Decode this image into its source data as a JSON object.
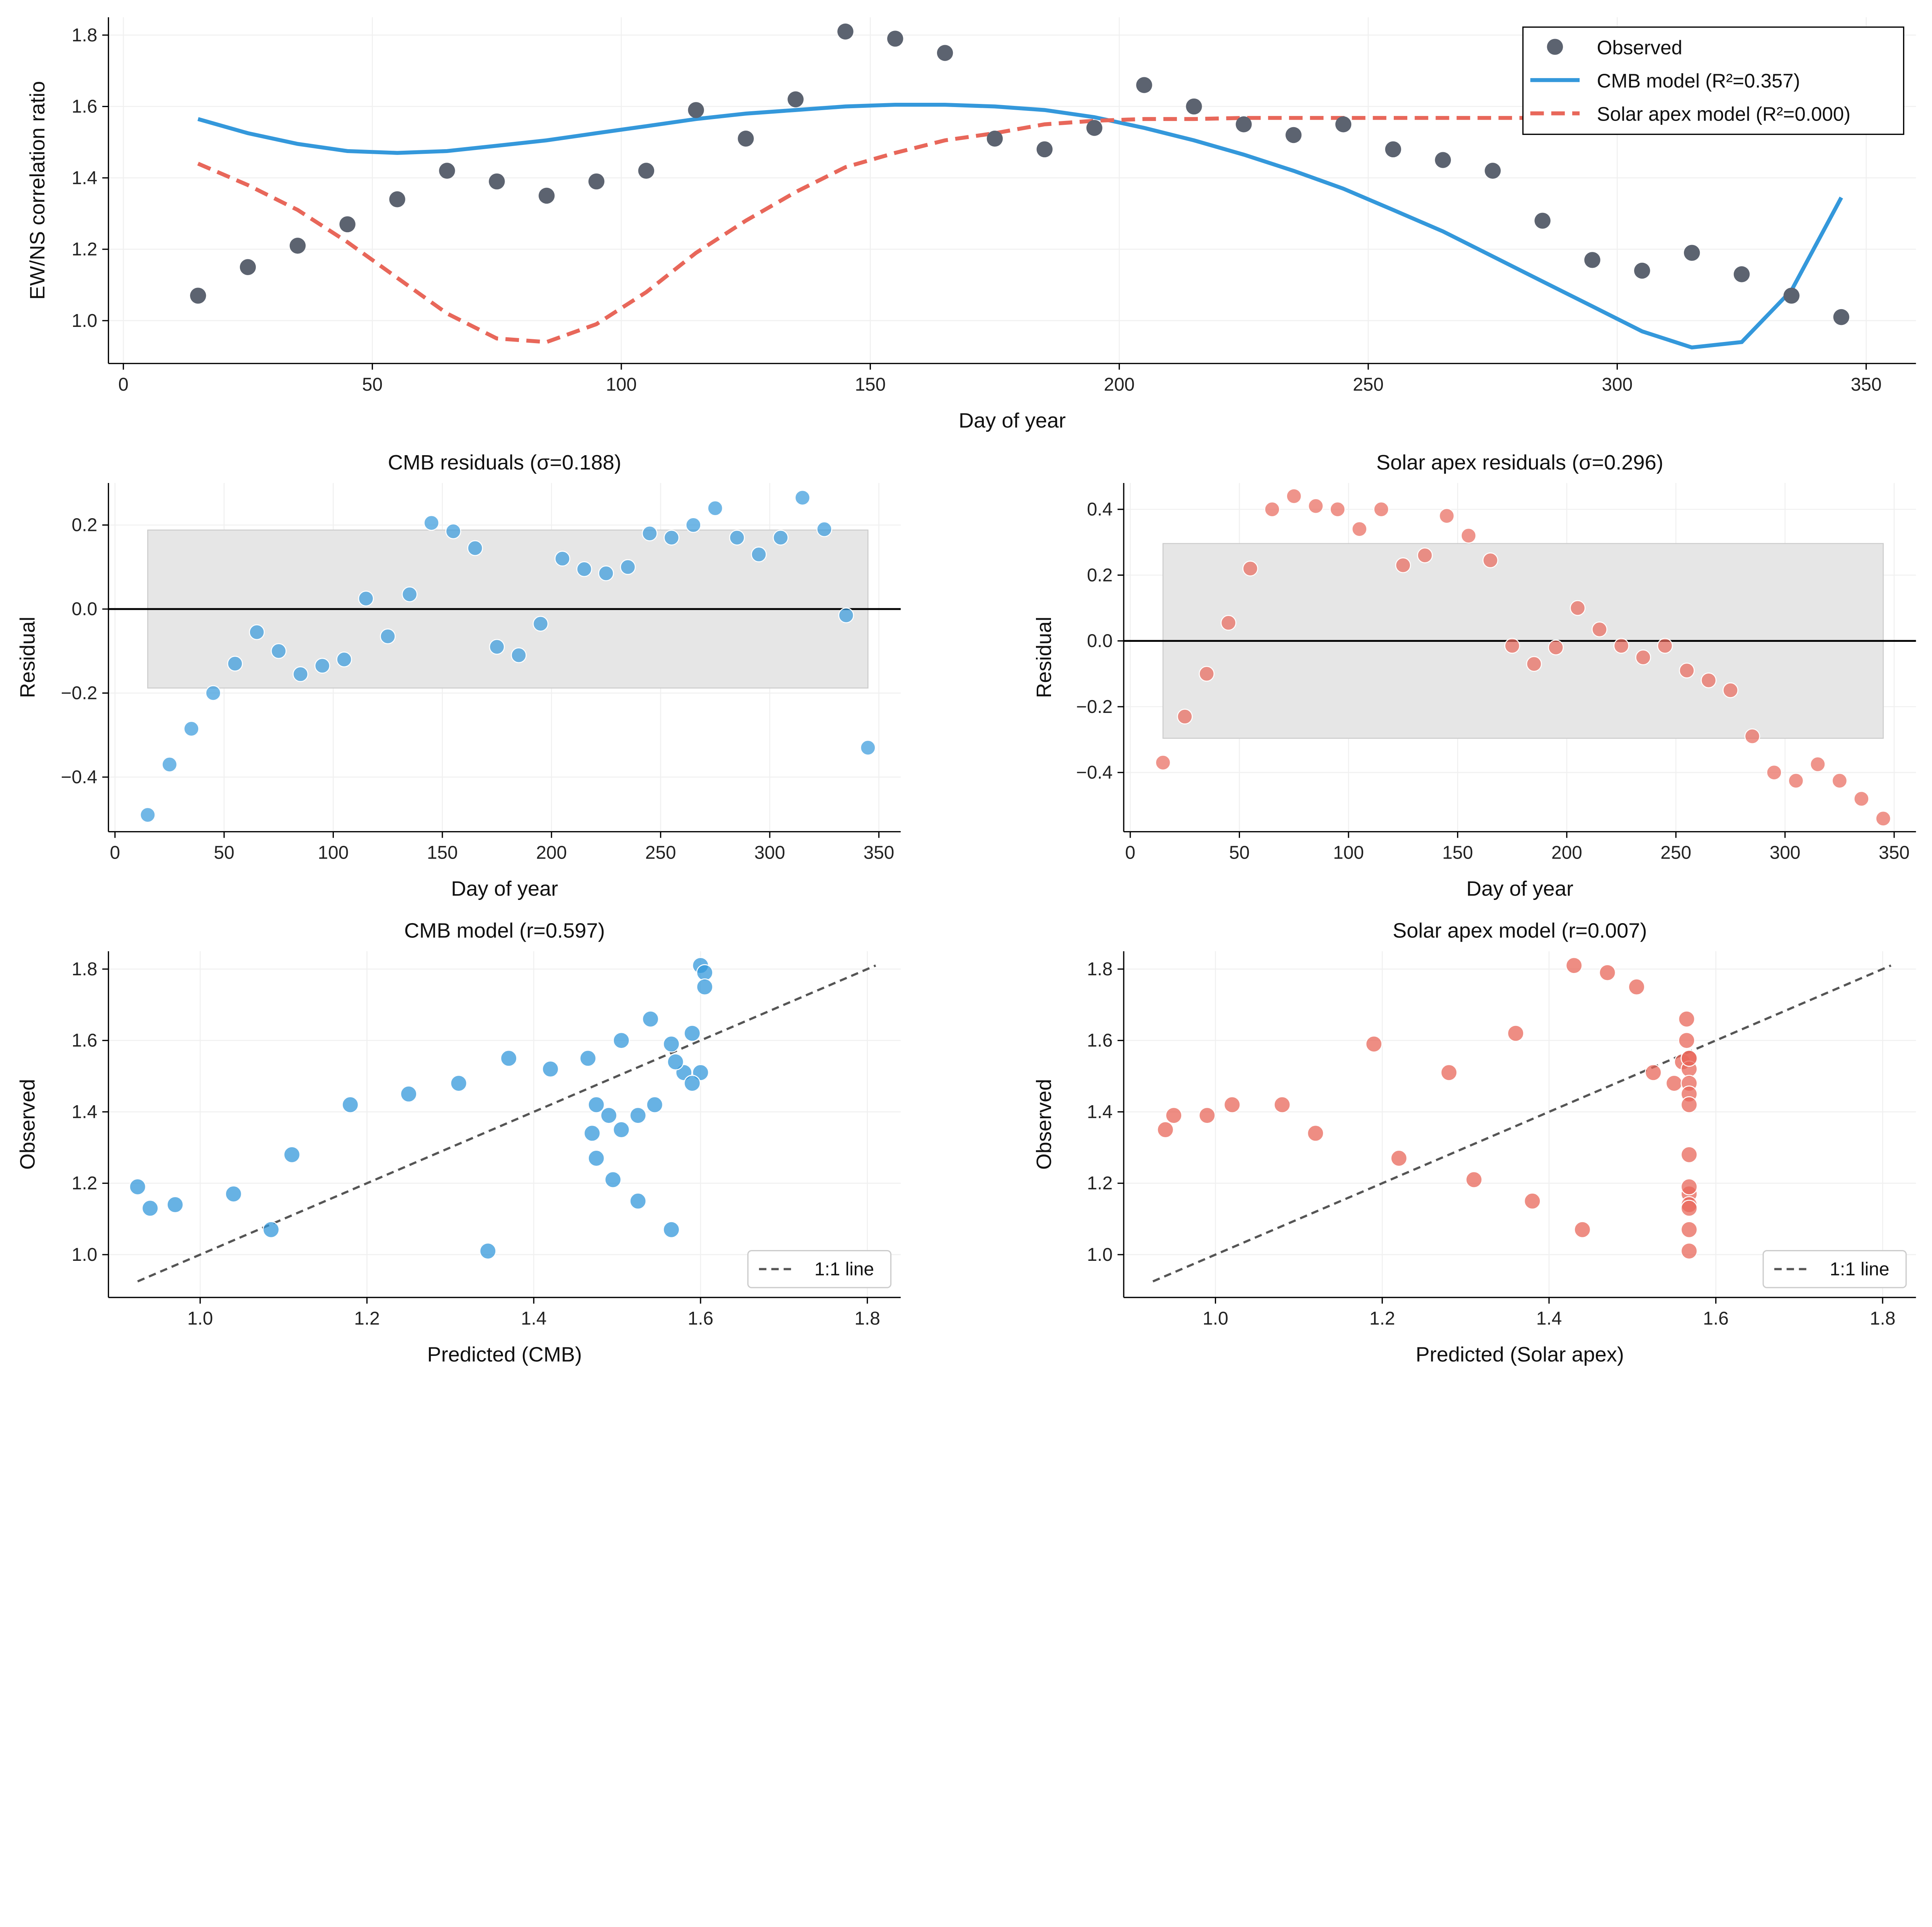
{
  "colors": {
    "observed": "#5c6370",
    "cmb": "#3498db",
    "solar": "#e8675a",
    "band": "#e6e6e6",
    "identity": "#555555"
  },
  "chart_data": [
    {
      "type": "line",
      "title": "",
      "xlabel": "Day of year",
      "ylabel": "EW/NS correlation ratio",
      "xlim": [
        -3,
        360
      ],
      "ylim": [
        0.88,
        1.85
      ],
      "xticks": [
        0,
        50,
        100,
        150,
        200,
        250,
        300,
        350
      ],
      "xtick_labels": [
        "0",
        "50",
        "100",
        "150",
        "200",
        "250",
        "300",
        "350"
      ],
      "yticks": [
        1.0,
        1.2,
        1.4,
        1.6,
        1.8
      ],
      "ytick_labels": [
        "1.0",
        "1.2",
        "1.4",
        "1.6",
        "1.8"
      ],
      "grid": true,
      "legend": "top-right",
      "x": [
        15,
        25,
        35,
        45,
        55,
        65,
        75,
        85,
        95,
        105,
        115,
        125,
        135,
        145,
        155,
        165,
        175,
        185,
        195,
        205,
        215,
        225,
        235,
        245,
        255,
        265,
        275,
        285,
        295,
        305,
        315,
        325,
        335,
        345
      ],
      "series": [
        {
          "name": "Observed",
          "kind": "scatter",
          "values": [
            1.07,
            1.15,
            1.21,
            1.27,
            1.34,
            1.42,
            1.39,
            1.35,
            1.39,
            1.42,
            1.59,
            1.51,
            1.62,
            1.81,
            1.79,
            1.75,
            1.51,
            1.48,
            1.54,
            1.66,
            1.6,
            1.55,
            1.52,
            1.55,
            1.48,
            1.45,
            1.42,
            1.28,
            1.17,
            1.14,
            1.19,
            1.13,
            1.07,
            1.01
          ]
        },
        {
          "name": "CMB model (R²=0.357)",
          "kind": "line",
          "values": [
            1.565,
            1.525,
            1.495,
            1.475,
            1.47,
            1.475,
            1.49,
            1.505,
            1.525,
            1.545,
            1.565,
            1.58,
            1.59,
            1.6,
            1.605,
            1.605,
            1.6,
            1.59,
            1.57,
            1.54,
            1.505,
            1.465,
            1.42,
            1.37,
            1.31,
            1.25,
            1.18,
            1.11,
            1.04,
            0.97,
            0.925,
            0.94,
            1.085,
            1.345
          ]
        },
        {
          "name": "Solar apex model (R²=0.000)",
          "kind": "dashed",
          "values": [
            1.44,
            1.38,
            1.31,
            1.22,
            1.12,
            1.02,
            0.95,
            0.94,
            0.99,
            1.08,
            1.19,
            1.28,
            1.36,
            1.43,
            1.47,
            1.505,
            1.525,
            1.55,
            1.56,
            1.565,
            1.565,
            1.568,
            1.568,
            1.568,
            1.568,
            1.568,
            1.568,
            1.568,
            1.568,
            1.568,
            1.568,
            1.568,
            1.568,
            1.568
          ]
        }
      ]
    },
    {
      "type": "scatter",
      "title": "CMB residuals (σ=0.188)",
      "xlabel": "Day of year",
      "ylabel": "Residual",
      "xlim": [
        -3,
        360
      ],
      "ylim": [
        -0.53,
        0.3
      ],
      "xticks": [
        0,
        50,
        100,
        150,
        200,
        250,
        300,
        350
      ],
      "xtick_labels": [
        "0",
        "50",
        "100",
        "150",
        "200",
        "250",
        "300",
        "350"
      ],
      "yticks": [
        -0.4,
        -0.2,
        0.0,
        0.2
      ],
      "ytick_labels": [
        "−0.4",
        "−0.2",
        "0.0",
        "0.2"
      ],
      "grid": true,
      "band": {
        "sigma": 0.188,
        "from": 15,
        "to": 345
      },
      "x": [
        15,
        25,
        35,
        45,
        55,
        65,
        75,
        85,
        95,
        105,
        115,
        125,
        135,
        145,
        155,
        165,
        175,
        185,
        195,
        205,
        215,
        225,
        235,
        245,
        255,
        265,
        275,
        285,
        295,
        305,
        315,
        325,
        335,
        345
      ],
      "y": [
        -0.49,
        -0.37,
        -0.285,
        -0.2,
        -0.13,
        -0.055,
        -0.1,
        -0.155,
        -0.135,
        -0.12,
        0.025,
        -0.065,
        0.035,
        0.205,
        0.185,
        0.145,
        -0.09,
        -0.11,
        -0.035,
        0.12,
        0.095,
        0.085,
        0.1,
        0.18,
        0.17,
        0.2,
        0.24,
        0.17,
        0.13,
        0.17,
        0.265,
        0.19,
        -0.015,
        -0.33
      ]
    },
    {
      "type": "scatter",
      "title": "Solar apex residuals (σ=0.296)",
      "xlabel": "Day of year",
      "ylabel": "Residual",
      "xlim": [
        -3,
        360
      ],
      "ylim": [
        -0.58,
        0.48
      ],
      "xticks": [
        0,
        50,
        100,
        150,
        200,
        250,
        300,
        350
      ],
      "xtick_labels": [
        "0",
        "50",
        "100",
        "150",
        "200",
        "250",
        "300",
        "350"
      ],
      "yticks": [
        -0.4,
        -0.2,
        0.0,
        0.2,
        0.4
      ],
      "ytick_labels": [
        "−0.4",
        "−0.2",
        "0.0",
        "0.2",
        "0.4"
      ],
      "grid": true,
      "band": {
        "sigma": 0.296,
        "from": 15,
        "to": 345
      },
      "x": [
        15,
        25,
        35,
        45,
        55,
        65,
        75,
        85,
        95,
        105,
        115,
        125,
        135,
        145,
        155,
        165,
        175,
        185,
        195,
        205,
        215,
        225,
        235,
        245,
        255,
        265,
        275,
        285,
        295,
        305,
        315,
        325,
        335,
        345
      ],
      "y": [
        -0.37,
        -0.23,
        -0.1,
        0.055,
        0.22,
        0.4,
        0.44,
        0.41,
        0.4,
        0.34,
        0.4,
        0.23,
        0.26,
        0.38,
        0.32,
        0.245,
        -0.015,
        -0.07,
        -0.02,
        0.1,
        0.035,
        -0.015,
        -0.05,
        -0.015,
        -0.09,
        -0.12,
        -0.15,
        -0.29,
        -0.4,
        -0.425,
        -0.375,
        -0.425,
        -0.48,
        -0.54
      ]
    },
    {
      "type": "scatter",
      "title": "CMB model (r=0.597)",
      "xlabel": "Predicted (CMB)",
      "ylabel": "Observed",
      "xlim": [
        0.89,
        1.84
      ],
      "ylim": [
        0.88,
        1.85
      ],
      "xticks": [
        1.0,
        1.2,
        1.4,
        1.6,
        1.8
      ],
      "xtick_labels": [
        "1.0",
        "1.2",
        "1.4",
        "1.6",
        "1.8"
      ],
      "yticks": [
        1.0,
        1.2,
        1.4,
        1.6,
        1.8
      ],
      "ytick_labels": [
        "1.0",
        "1.2",
        "1.4",
        "1.6",
        "1.8"
      ],
      "grid": true,
      "legend": "bottom-right",
      "identity_label": "1:1 line",
      "x": [
        1.565,
        1.525,
        1.495,
        1.475,
        1.47,
        1.475,
        1.49,
        1.505,
        1.525,
        1.545,
        1.565,
        1.58,
        1.59,
        1.6,
        1.605,
        1.605,
        1.6,
        1.59,
        1.57,
        1.54,
        1.505,
        1.465,
        1.42,
        1.37,
        1.31,
        1.25,
        1.18,
        1.11,
        1.04,
        0.97,
        0.925,
        0.94,
        1.085,
        1.345
      ],
      "y": [
        1.07,
        1.15,
        1.21,
        1.27,
        1.34,
        1.42,
        1.39,
        1.35,
        1.39,
        1.42,
        1.59,
        1.51,
        1.62,
        1.81,
        1.79,
        1.75,
        1.51,
        1.48,
        1.54,
        1.66,
        1.6,
        1.55,
        1.52,
        1.55,
        1.48,
        1.45,
        1.42,
        1.28,
        1.17,
        1.14,
        1.19,
        1.13,
        1.07,
        1.01
      ]
    },
    {
      "type": "scatter",
      "title": "Solar apex model (r=0.007)",
      "xlabel": "Predicted (Solar apex)",
      "ylabel": "Observed",
      "xlim": [
        0.89,
        1.84
      ],
      "ylim": [
        0.88,
        1.85
      ],
      "xticks": [
        1.0,
        1.2,
        1.4,
        1.6,
        1.8
      ],
      "xtick_labels": [
        "1.0",
        "1.2",
        "1.4",
        "1.6",
        "1.8"
      ],
      "yticks": [
        1.0,
        1.2,
        1.4,
        1.6,
        1.8
      ],
      "ytick_labels": [
        "1.0",
        "1.2",
        "1.4",
        "1.6",
        "1.8"
      ],
      "grid": true,
      "legend": "bottom-right",
      "identity_label": "1:1 line",
      "x": [
        1.44,
        1.38,
        1.31,
        1.22,
        1.12,
        1.02,
        0.95,
        0.94,
        0.99,
        1.08,
        1.19,
        1.28,
        1.36,
        1.43,
        1.47,
        1.505,
        1.525,
        1.55,
        1.56,
        1.565,
        1.565,
        1.568,
        1.568,
        1.568,
        1.568,
        1.568,
        1.568,
        1.568,
        1.568,
        1.568,
        1.568,
        1.568,
        1.568,
        1.568
      ],
      "y": [
        1.07,
        1.15,
        1.21,
        1.27,
        1.34,
        1.42,
        1.39,
        1.35,
        1.39,
        1.42,
        1.59,
        1.51,
        1.62,
        1.81,
        1.79,
        1.75,
        1.51,
        1.48,
        1.54,
        1.66,
        1.6,
        1.55,
        1.52,
        1.55,
        1.48,
        1.45,
        1.42,
        1.28,
        1.17,
        1.14,
        1.19,
        1.13,
        1.07,
        1.01
      ]
    }
  ]
}
